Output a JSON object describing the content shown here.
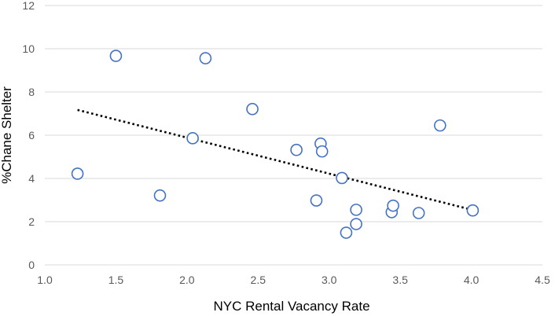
{
  "chart_data": {
    "type": "scatter",
    "title": "",
    "xlabel": "NYC Rental Vacancy Rate",
    "ylabel": "%Chane Shelter",
    "xlim": [
      1.0,
      4.5
    ],
    "ylim": [
      0,
      12
    ],
    "x_ticks": [
      "1.0",
      "1.5",
      "2.0",
      "2.5",
      "3.0",
      "3.5",
      "4.0",
      "4.5"
    ],
    "y_ticks": [
      "0",
      "2",
      "4",
      "6",
      "8",
      "10",
      "12"
    ],
    "grid": "horizontal",
    "legend": "none",
    "marker_color": "#4472C4",
    "trendline_color": "#000000",
    "points": [
      {
        "x": 1.23,
        "y": 4.22
      },
      {
        "x": 1.5,
        "y": 9.67
      },
      {
        "x": 1.81,
        "y": 3.21
      },
      {
        "x": 2.04,
        "y": 5.86
      },
      {
        "x": 2.13,
        "y": 9.56
      },
      {
        "x": 2.46,
        "y": 7.21
      },
      {
        "x": 2.77,
        "y": 5.32
      },
      {
        "x": 2.91,
        "y": 2.98
      },
      {
        "x": 2.94,
        "y": 5.61
      },
      {
        "x": 2.95,
        "y": 5.25
      },
      {
        "x": 3.09,
        "y": 4.02
      },
      {
        "x": 3.12,
        "y": 1.49
      },
      {
        "x": 3.19,
        "y": 2.55
      },
      {
        "x": 3.19,
        "y": 1.89
      },
      {
        "x": 3.44,
        "y": 2.44
      },
      {
        "x": 3.45,
        "y": 2.74
      },
      {
        "x": 3.63,
        "y": 2.4
      },
      {
        "x": 3.78,
        "y": 6.45
      },
      {
        "x": 4.01,
        "y": 2.52
      }
    ],
    "trendline": {
      "x": [
        1.23,
        4.01
      ],
      "y": [
        7.17,
        2.54
      ]
    }
  }
}
